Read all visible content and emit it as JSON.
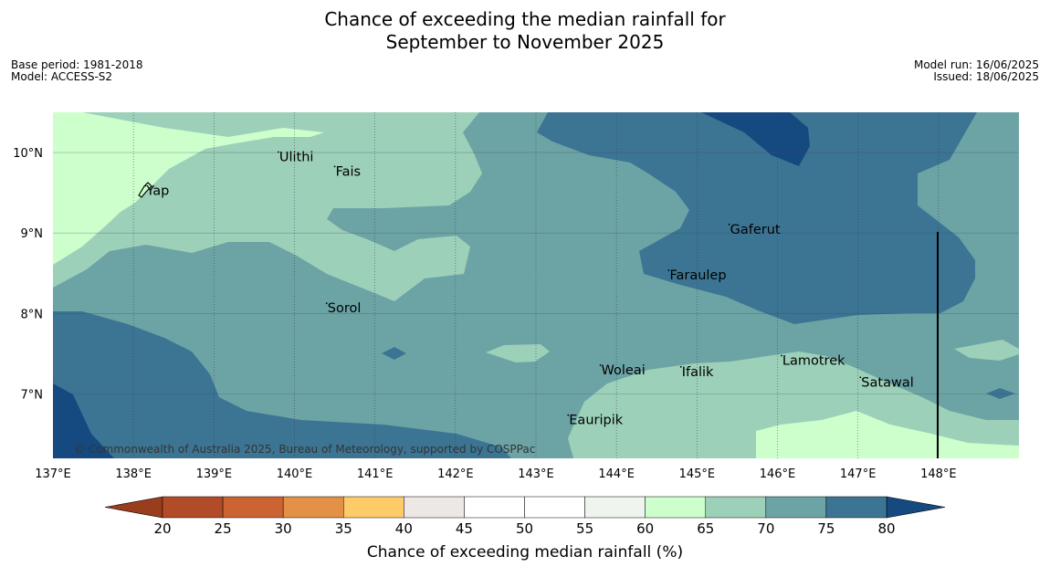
{
  "title": {
    "line1": "Chance of exceeding the median rainfall for",
    "line2": "September to November 2025"
  },
  "meta": {
    "base_period": "Base period: 1981-2018",
    "model": "Model: ACCESS-S2",
    "model_run": "Model run: 16/06/2025",
    "issued": "Issued: 18/06/2025"
  },
  "map": {
    "lon_range": [
      137,
      149
    ],
    "lat_range": [
      6.2,
      10.5
    ],
    "lon_ticks": [
      {
        "value": 137,
        "label": "137°E"
      },
      {
        "value": 138,
        "label": "138°E"
      },
      {
        "value": 139,
        "label": "139°E"
      },
      {
        "value": 140,
        "label": "140°E"
      },
      {
        "value": 141,
        "label": "141°E"
      },
      {
        "value": 142,
        "label": "142°E"
      },
      {
        "value": 143,
        "label": "143°E"
      },
      {
        "value": 144,
        "label": "144°E"
      },
      {
        "value": 145,
        "label": "145°E"
      },
      {
        "value": 146,
        "label": "146°E"
      },
      {
        "value": 147,
        "label": "147°E"
      },
      {
        "value": 148,
        "label": "148°E"
      }
    ],
    "lat_ticks": [
      {
        "value": 10,
        "label": "10°N"
      },
      {
        "value": 9,
        "label": "9°N"
      },
      {
        "value": 8,
        "label": "8°N"
      },
      {
        "value": 7,
        "label": "7°N"
      }
    ],
    "places": [
      {
        "name": "Ulithi",
        "lon": 139.8,
        "lat": 9.95
      },
      {
        "name": "Fais",
        "lon": 140.5,
        "lat": 9.77
      },
      {
        "name": "Yap",
        "lon": 138.15,
        "lat": 9.53
      },
      {
        "name": "Gaferut",
        "lon": 145.4,
        "lat": 9.05
      },
      {
        "name": "Faraulep",
        "lon": 144.65,
        "lat": 8.48
      },
      {
        "name": "Sorol",
        "lon": 140.4,
        "lat": 8.07
      },
      {
        "name": "Lamotrek",
        "lon": 146.05,
        "lat": 7.42
      },
      {
        "name": "Woleai",
        "lon": 143.8,
        "lat": 7.3
      },
      {
        "name": "Ifalik",
        "lon": 144.8,
        "lat": 7.28
      },
      {
        "name": "Satawal",
        "lon": 147.03,
        "lat": 7.15
      },
      {
        "name": "Eauripik",
        "lon": 143.4,
        "lat": 6.68
      }
    ],
    "copyright": "© Commonwealth of Australia 2025, Bureau of Meteorology, supported by COSPPac",
    "colors": {
      "c60_65": "#ccffcc",
      "c65_70": "#9dd0b9",
      "c70_75": "#6ca4a6",
      "c75_80": "#3c7593",
      "c80_up": "#154a80"
    }
  },
  "colorbar": {
    "ticks": [
      "20",
      "25",
      "30",
      "35",
      "40",
      "45",
      "50",
      "55",
      "60",
      "65",
      "70",
      "75",
      "80"
    ],
    "under_color": "#993d1d",
    "over_color": "#154a80",
    "colors": [
      "#b24b27",
      "#cc6332",
      "#e29146",
      "#fecb68",
      "#ede8e4",
      "#ffffff",
      "#ffffff",
      "#edf5ed",
      "#ccffcc",
      "#9dd0b9",
      "#6ca4a6",
      "#3c7593"
    ],
    "label": "Chance of exceeding median rainfall (%)"
  }
}
